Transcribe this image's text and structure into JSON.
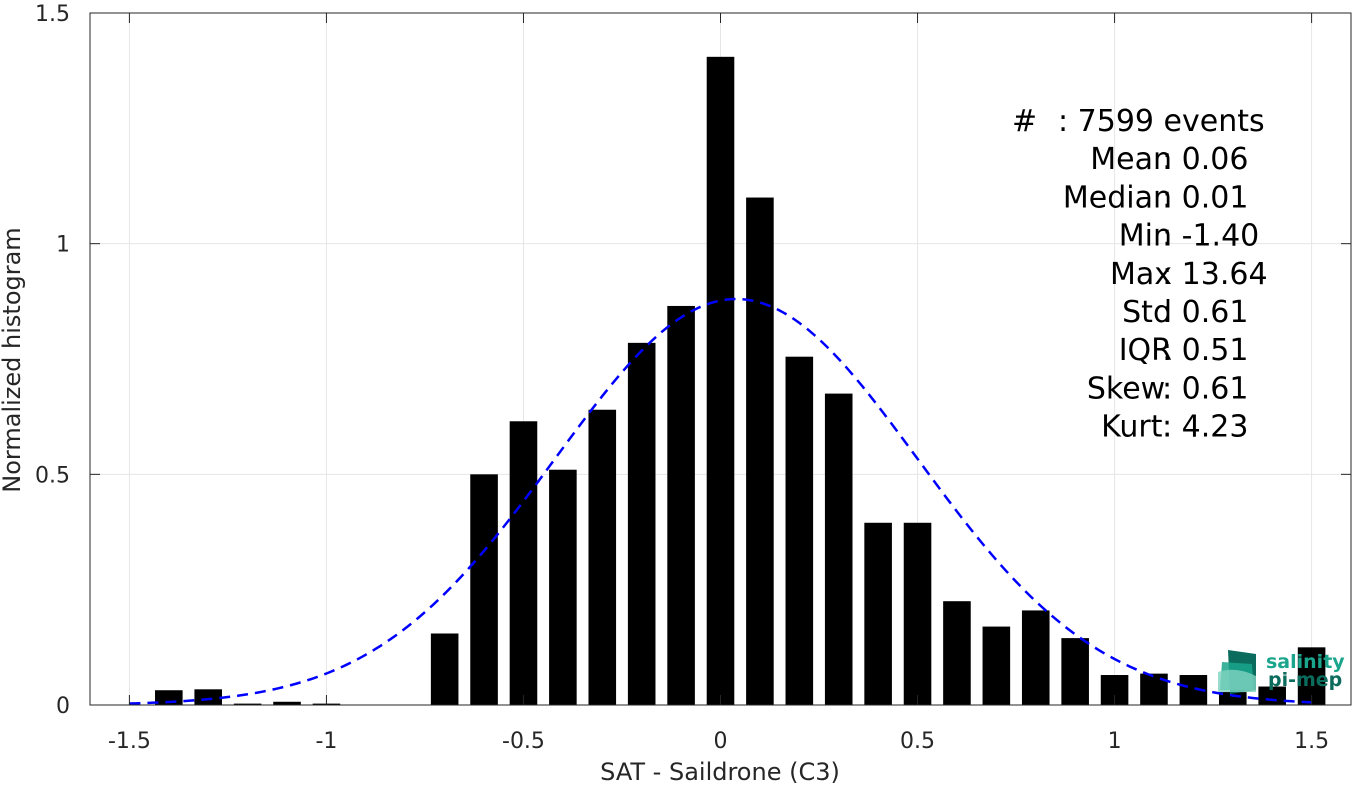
{
  "chart_data": {
    "type": "bar",
    "xlabel": "SAT - Saildrone (C3)",
    "ylabel": "Normalized histogram",
    "xlim": [
      -1.6,
      1.6
    ],
    "ylim": [
      0,
      1.5
    ],
    "xticks": [
      -1.5,
      -1,
      -0.5,
      0,
      0.5,
      1,
      1.5
    ],
    "xtick_labels": [
      "-1.5",
      "-1",
      "-0.5",
      "0",
      "0.5",
      "1",
      "1.5"
    ],
    "yticks": [
      0,
      0.5,
      1,
      1.5
    ],
    "ytick_labels": [
      "0",
      "0.5",
      "1",
      "1.5"
    ],
    "grid": true,
    "bar_width": 0.07,
    "bar_color": "#000000",
    "bars": {
      "x": [
        -1.4,
        -1.3,
        -1.2,
        -1.1,
        -1.0,
        -0.9,
        -0.8,
        -0.7,
        -0.6,
        -0.5,
        -0.4,
        -0.3,
        -0.2,
        -0.1,
        0.0,
        0.1,
        0.2,
        0.3,
        0.4,
        0.5,
        0.6,
        0.7,
        0.8,
        0.9,
        1.0,
        1.1,
        1.2,
        1.3,
        1.4,
        1.5
      ],
      "values": [
        0.032,
        0.034,
        0.003,
        0.007,
        0.003,
        0.0,
        0.0,
        0.155,
        0.5,
        0.615,
        0.51,
        0.64,
        0.785,
        0.865,
        1.405,
        1.1,
        0.755,
        0.675,
        0.395,
        0.395,
        0.225,
        0.17,
        0.205,
        0.145,
        0.065,
        0.068,
        0.065,
        0.028,
        0.04,
        0.125
      ]
    },
    "fit_curve": {
      "type": "gaussian",
      "color": "#0000ff",
      "style": "dashed",
      "mean": 0.04,
      "std": 0.46,
      "peak": 0.88,
      "x_range": [
        -1.5,
        1.5
      ]
    },
    "stats": [
      {
        "label": "#  ",
        "value": ": 7599 events"
      },
      {
        "label": "Mean ",
        "value": ": 0.06"
      },
      {
        "label": "Median ",
        "value": ": 0.01"
      },
      {
        "label": "Min ",
        "value": ": -1.40"
      },
      {
        "label": "Max ",
        "value": ": 13.64"
      },
      {
        "label": "Std ",
        "value": ": 0.61"
      },
      {
        "label": "IQR ",
        "value": ": 0.51"
      },
      {
        "label": "Skew. ",
        "value": ": 0.61"
      },
      {
        "label": "Kurt. ",
        "value": ": 4.23"
      }
    ]
  },
  "logo": {
    "line1": "salinity",
    "line2": "pi-mep",
    "colors": [
      "#1aa58c",
      "#0b6b5c"
    ]
  }
}
